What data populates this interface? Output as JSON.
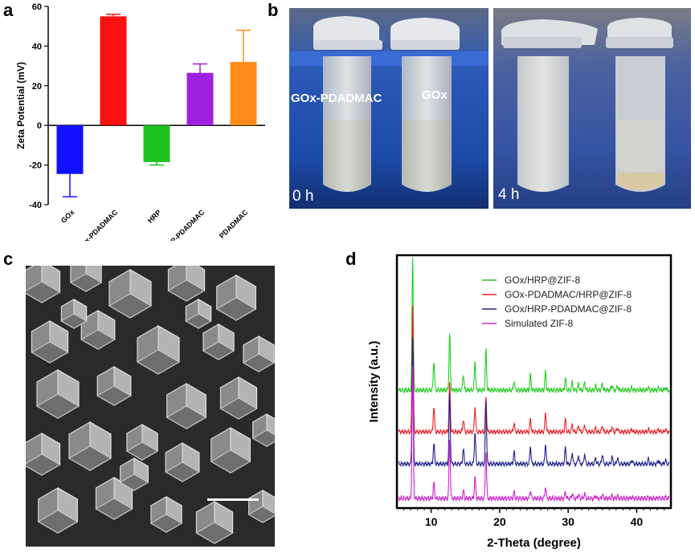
{
  "panels": {
    "a": {
      "letter": "a",
      "chart_data": {
        "type": "bar",
        "ylabel": "Zeta Potential (mV)",
        "ylim": [
          -40,
          60
        ],
        "yticks": [
          -40,
          -20,
          0,
          20,
          40,
          60
        ],
        "categories": [
          "GOx",
          "GOx-PDADMAC",
          "HRP",
          "HRP-PDADMAC",
          "PDADMAC"
        ],
        "values": [
          -24.5,
          55,
          -18.5,
          26.5,
          32
        ],
        "errors": [
          11.5,
          1,
          1.5,
          4.5,
          16
        ],
        "colors": [
          "#1010ff",
          "#ff1010",
          "#1ec21e",
          "#a020e0",
          "#ff8c1a"
        ],
        "grid": false
      }
    },
    "b": {
      "letter": "b",
      "photos": [
        {
          "time_label": "0 h",
          "tube_labels": [
            "GOx-PDADMAC",
            "GOx"
          ]
        },
        {
          "time_label": "4 h",
          "tube_labels": []
        }
      ]
    },
    "c": {
      "letter": "c",
      "image": "SEM micrograph of rhombic dodecahedral ZIF-8 crystals with scale bar"
    },
    "d": {
      "letter": "d",
      "chart_data": {
        "type": "line",
        "xlabel": "2-Theta (degree)",
        "ylabel": "Intensity (a.u.)",
        "xlim": [
          5,
          45
        ],
        "xticks": [
          10,
          20,
          30,
          40
        ],
        "peaks": [
          7.3,
          10.4,
          12.7,
          14.7,
          16.4,
          18.0,
          22.1,
          24.5,
          26.7,
          29.6,
          30.6,
          31.5,
          32.4,
          34.0,
          35.0,
          36.4,
          37.2,
          39.3,
          41.7,
          43.2,
          44.2
        ],
        "series": [
          {
            "name": "GOx/HRP@ZIF-8",
            "color": "#22cc22",
            "heights": [
              1.0,
              0.22,
              0.42,
              0.12,
              0.22,
              0.3,
              0.07,
              0.11,
              0.14,
              0.09,
              0.06,
              0.05,
              0.06,
              0.03,
              0.05,
              0.04,
              0.03,
              0.02,
              0.02,
              0.02,
              0.02
            ]
          },
          {
            "name": "GOx-PDADMAC/HRP@ZIF-8",
            "color": "#e8222a",
            "heights": [
              1.0,
              0.2,
              0.38,
              0.1,
              0.2,
              0.27,
              0.07,
              0.1,
              0.15,
              0.1,
              0.06,
              0.05,
              0.06,
              0.03,
              0.05,
              0.04,
              0.03,
              0.02,
              0.02,
              0.02,
              0.02
            ]
          },
          {
            "name": "GOx/HRP-PDADMAC@ZIF-8",
            "color": "#22228c",
            "heights": [
              1.0,
              0.16,
              0.55,
              0.12,
              0.25,
              0.5,
              0.1,
              0.14,
              0.16,
              0.13,
              0.09,
              0.07,
              0.08,
              0.05,
              0.08,
              0.06,
              0.05,
              0.03,
              0.04,
              0.03,
              0.03
            ]
          },
          {
            "name": "Simulated ZIF-8",
            "color": "#cc22cc",
            "heights": [
              1.0,
              0.12,
              0.45,
              0.06,
              0.16,
              0.36,
              0.05,
              0.06,
              0.09,
              0.05,
              0.04,
              0.03,
              0.04,
              0.02,
              0.03,
              0.02,
              0.02,
              0.01,
              0.01,
              0.01,
              0.01
            ]
          }
        ]
      }
    }
  }
}
